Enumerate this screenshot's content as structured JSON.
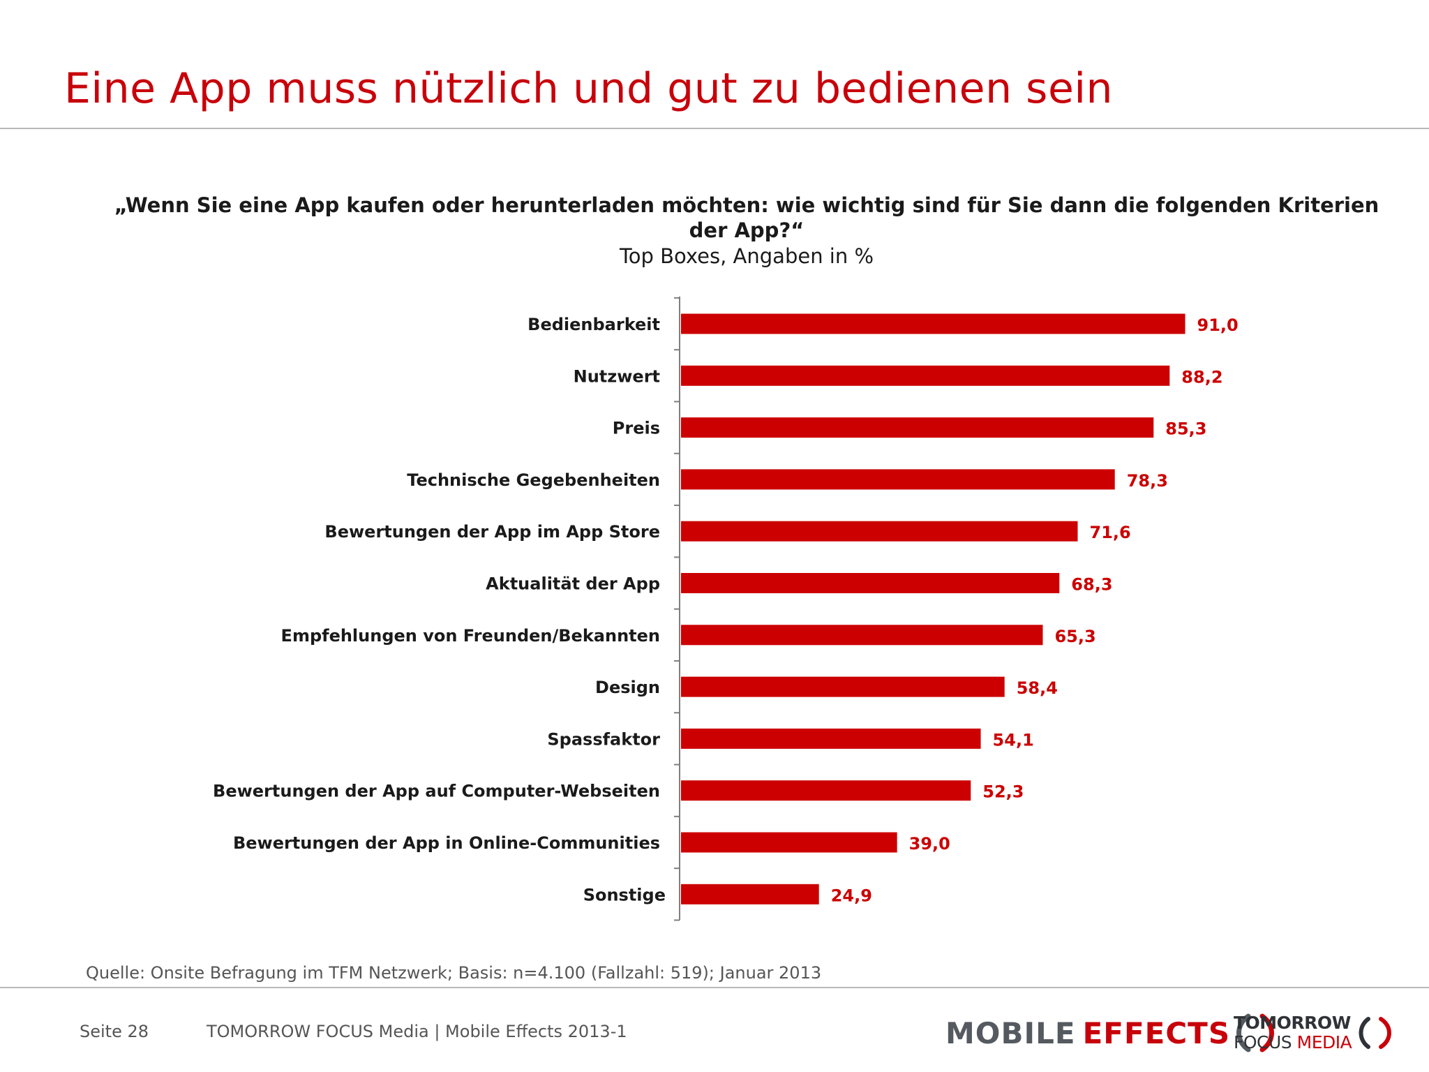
{
  "slide": {
    "title": "Eine App muss nützlich und gut zu bedienen sein",
    "question": "„Wenn Sie eine App kaufen oder herunterladen möchten: wie wichtig sind für Sie dann die folgenden Kriterien der App?“",
    "question_sub": "Top Boxes, Angaben in %",
    "source": "Quelle: Onsite Befragung im TFM Netzwerk; Basis: n=4.100 (Fallzahl: 519); Januar 2013"
  },
  "footer": {
    "page": "Seite 28",
    "text": "TOMORROW FOCUS Media  |  Mobile Effects 2013-1",
    "logo_mobile": "MOBILE",
    "logo_effects": "EFFECTS",
    "logo_tfm_line1": "TOMORROW",
    "logo_tfm_focus": "FOCUS",
    "logo_tfm_media": "MEDIA"
  },
  "colors": {
    "accent": "#c8000a",
    "bar": "#cc0000",
    "label": "#1a1a1a",
    "axis": "#7f7f7f"
  },
  "chart_data": {
    "type": "bar",
    "orientation": "horizontal",
    "categories": [
      "Bedienbarkeit",
      "Nutzwert",
      "Preis",
      "Technische Gegebenheiten",
      "Bewertungen der App im App Store",
      "Aktualität der App",
      "Empfehlungen von Freunden/Bekannten",
      "Design",
      "Spassfaktor",
      "Bewertungen der App auf Computer-Webseiten",
      "Bewertungen der App in Online-Communities",
      "Sonstige"
    ],
    "values": [
      91.0,
      88.2,
      85.3,
      78.3,
      71.6,
      68.3,
      65.3,
      58.4,
      54.1,
      52.3,
      39.0,
      24.9
    ],
    "value_labels": [
      "91,0",
      "88,2",
      "85,3",
      "78,3",
      "71,6",
      "68,3",
      "65,3",
      "58,4",
      "54,1",
      "52,3",
      "39,0",
      "24,9"
    ],
    "xlim": [
      0,
      100
    ],
    "grid": false,
    "legend": "none"
  }
}
